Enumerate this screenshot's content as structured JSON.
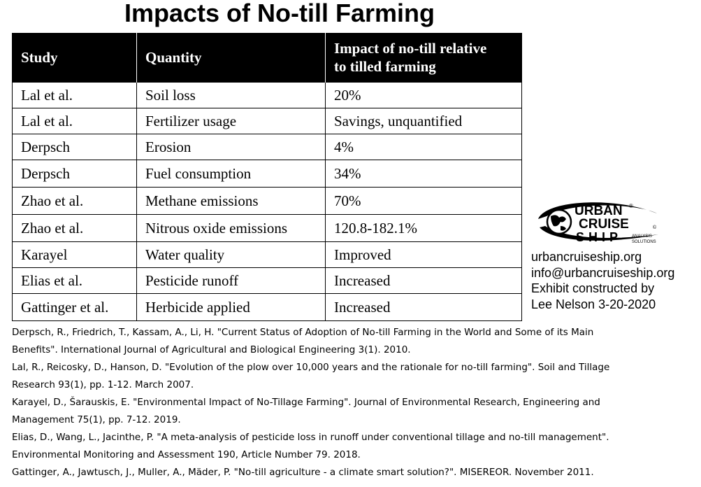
{
  "title": "Impacts of No-till Farming",
  "table": {
    "headers": {
      "study": "Study",
      "quantity": "Quantity",
      "impact_line1": "Impact of no-till relative",
      "impact_line2": "to tilled farming"
    },
    "rows": [
      {
        "study": "Lal et al.",
        "quantity": "Soil loss",
        "impact": "20%"
      },
      {
        "study": "Lal et al.",
        "quantity": "Fertilizer usage",
        "impact": "Savings, unquantified"
      },
      {
        "study": "Derpsch",
        "quantity": "Erosion",
        "impact": "4%"
      },
      {
        "study": "Derpsch",
        "quantity": "Fuel consumption",
        "impact": "34%"
      },
      {
        "study": "Zhao et al.",
        "quantity": "Methane emissions",
        "impact": "70%"
      },
      {
        "study": "Zhao et al.",
        "quantity": "Nitrous oxide emissions",
        "impact": "120.8-182.1%"
      },
      {
        "study": "Karayel",
        "quantity": "Water quality",
        "impact": "Improved"
      },
      {
        "study": "Elias et al.",
        "quantity": "Pesticide runoff",
        "impact": "Increased"
      },
      {
        "study": "Gattinger et al.",
        "quantity": "Herbicide applied",
        "impact": "Increased"
      }
    ]
  },
  "logo": {
    "line1": "URBAN",
    "line2": "CRUISE",
    "line3": "SHIP",
    "small1": "ANALYSIS",
    "small2": "SOLUTIONS",
    "registered": "®",
    "copyright": "©",
    "icon": "globe-icon"
  },
  "contact": {
    "website": "urbancruiseship.org",
    "email": "info@urbancruiseship.org",
    "credit_line1": "Exhibit constructed by",
    "credit_line2": "Lee Nelson 3-20-2020"
  },
  "references": [
    {
      "line1": "Derpsch, R., Friedrich, T., Kassam, A., Li, H. \"Current Status of Adoption of No-till Farming in the World and Some of its Main",
      "line2": "Benefits\". International Journal of Agricultural and Biological Engineering 3(1). 2010."
    },
    {
      "line1": "Lal, R., Reicosky, D., Hanson, D. \"Evolution of the plow over 10,000 years and the rationale for no-till farming\". Soil and Tillage",
      "line2": "Research 93(1), pp. 1-12. March 2007."
    },
    {
      "line1": "Karayel, D., Šarauskis, E. \"Environmental Impact of No-Tillage Farming\". Journal of Environmental Research, Engineering and",
      "line2": "Management 75(1), pp. 7-12. 2019."
    },
    {
      "line1": "Elias, D., Wang, L., Jacinthe, P. \"A meta-analysis of pesticide loss in runoff under conventional tillage and no-till management\".",
      "line2": "Environmental Monitoring and Assessment 190, Article Number 79. 2018."
    },
    {
      "line1": "Gattinger, A., Jawtusch, J., Muller, A., Mäder, P. \"No-till agriculture - a climate smart solution?\". MISEREOR. November 2011.",
      "line2": ""
    }
  ]
}
